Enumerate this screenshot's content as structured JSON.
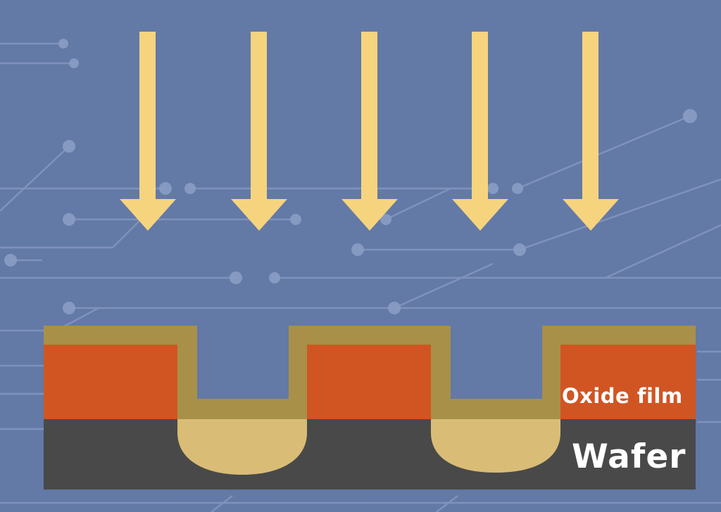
{
  "diagram": {
    "labels": {
      "oxide_film": "Oxide film",
      "wafer": "Wafer"
    },
    "arrow_count": 5,
    "arrow_direction": "down",
    "colors": {
      "background": "#6379a6",
      "circuit_lines": "#8a9dc4",
      "arrow": "#f6d47e",
      "deposited_layer": "#a89049",
      "oxide_film": "#d15522",
      "wafer": "#494949",
      "doped_region": "#d9bd76",
      "label_text": "#ffffff"
    }
  }
}
